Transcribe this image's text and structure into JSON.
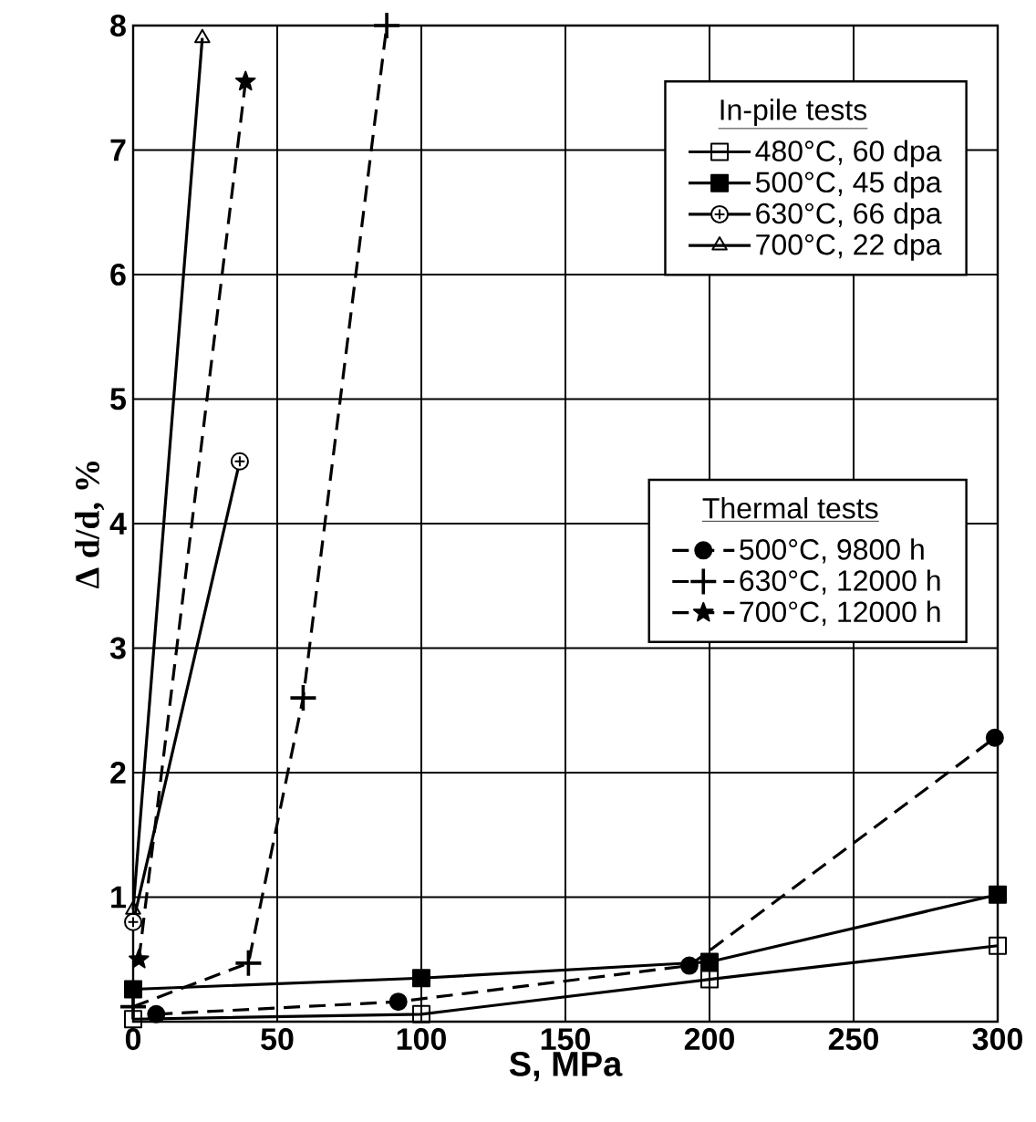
{
  "chart_data": {
    "type": "line",
    "xlabel": "S, MPa",
    "ylabel": "Δ d/d, %",
    "xlim": [
      0,
      300
    ],
    "ylim": [
      0,
      8
    ],
    "xticks": [
      0,
      50,
      100,
      150,
      200,
      250,
      300
    ],
    "yticks": [
      1,
      2,
      3,
      4,
      5,
      6,
      7,
      8
    ],
    "grid": true,
    "legend": "top right",
    "annotations": [
      "In-pile tests",
      "Thermal tests"
    ],
    "series": [
      {
        "name": "480°C, 60 dpa",
        "color": "#000000",
        "marker": "square-open",
        "line_style": "solid",
        "x": [
          0,
          100,
          200,
          300
        ],
        "values": [
          0.02,
          0.06,
          0.34,
          0.61
        ]
      },
      {
        "name": "500°C, 45 dpa",
        "color": "#000000",
        "marker": "square",
        "line_style": "solid",
        "x": [
          0,
          100,
          200,
          300
        ],
        "values": [
          0.26,
          0.35,
          0.48,
          1.02
        ]
      },
      {
        "name": "630°C, 66 dpa",
        "color": "#000000",
        "marker": "circle-open",
        "line_style": "solid",
        "x": [
          0,
          37
        ],
        "values": [
          0.8,
          4.5
        ]
      },
      {
        "name": "700°C, 22 dpa",
        "color": "#000000",
        "marker": "triangle-open",
        "line_style": "solid",
        "x": [
          0,
          24
        ],
        "values": [
          0.9,
          7.9
        ]
      },
      {
        "name": "500°C, 9800 h",
        "color": "#000000",
        "marker": "circle",
        "line_style": "dashed",
        "x": [
          8,
          92,
          193,
          299
        ],
        "values": [
          0.06,
          0.16,
          0.45,
          2.28
        ]
      },
      {
        "name": "630°C, 12000 h",
        "color": "#000000",
        "marker": "cross",
        "line_style": "dashed",
        "x": [
          0,
          40,
          59,
          88
        ],
        "values": [
          0.12,
          0.47,
          2.6,
          8.0
        ]
      },
      {
        "name": "700°C, 12000 h",
        "color": "#000000",
        "marker": "star",
        "line_style": "dashed",
        "x": [
          2,
          39
        ],
        "values": [
          0.5,
          7.55
        ]
      }
    ]
  }
}
